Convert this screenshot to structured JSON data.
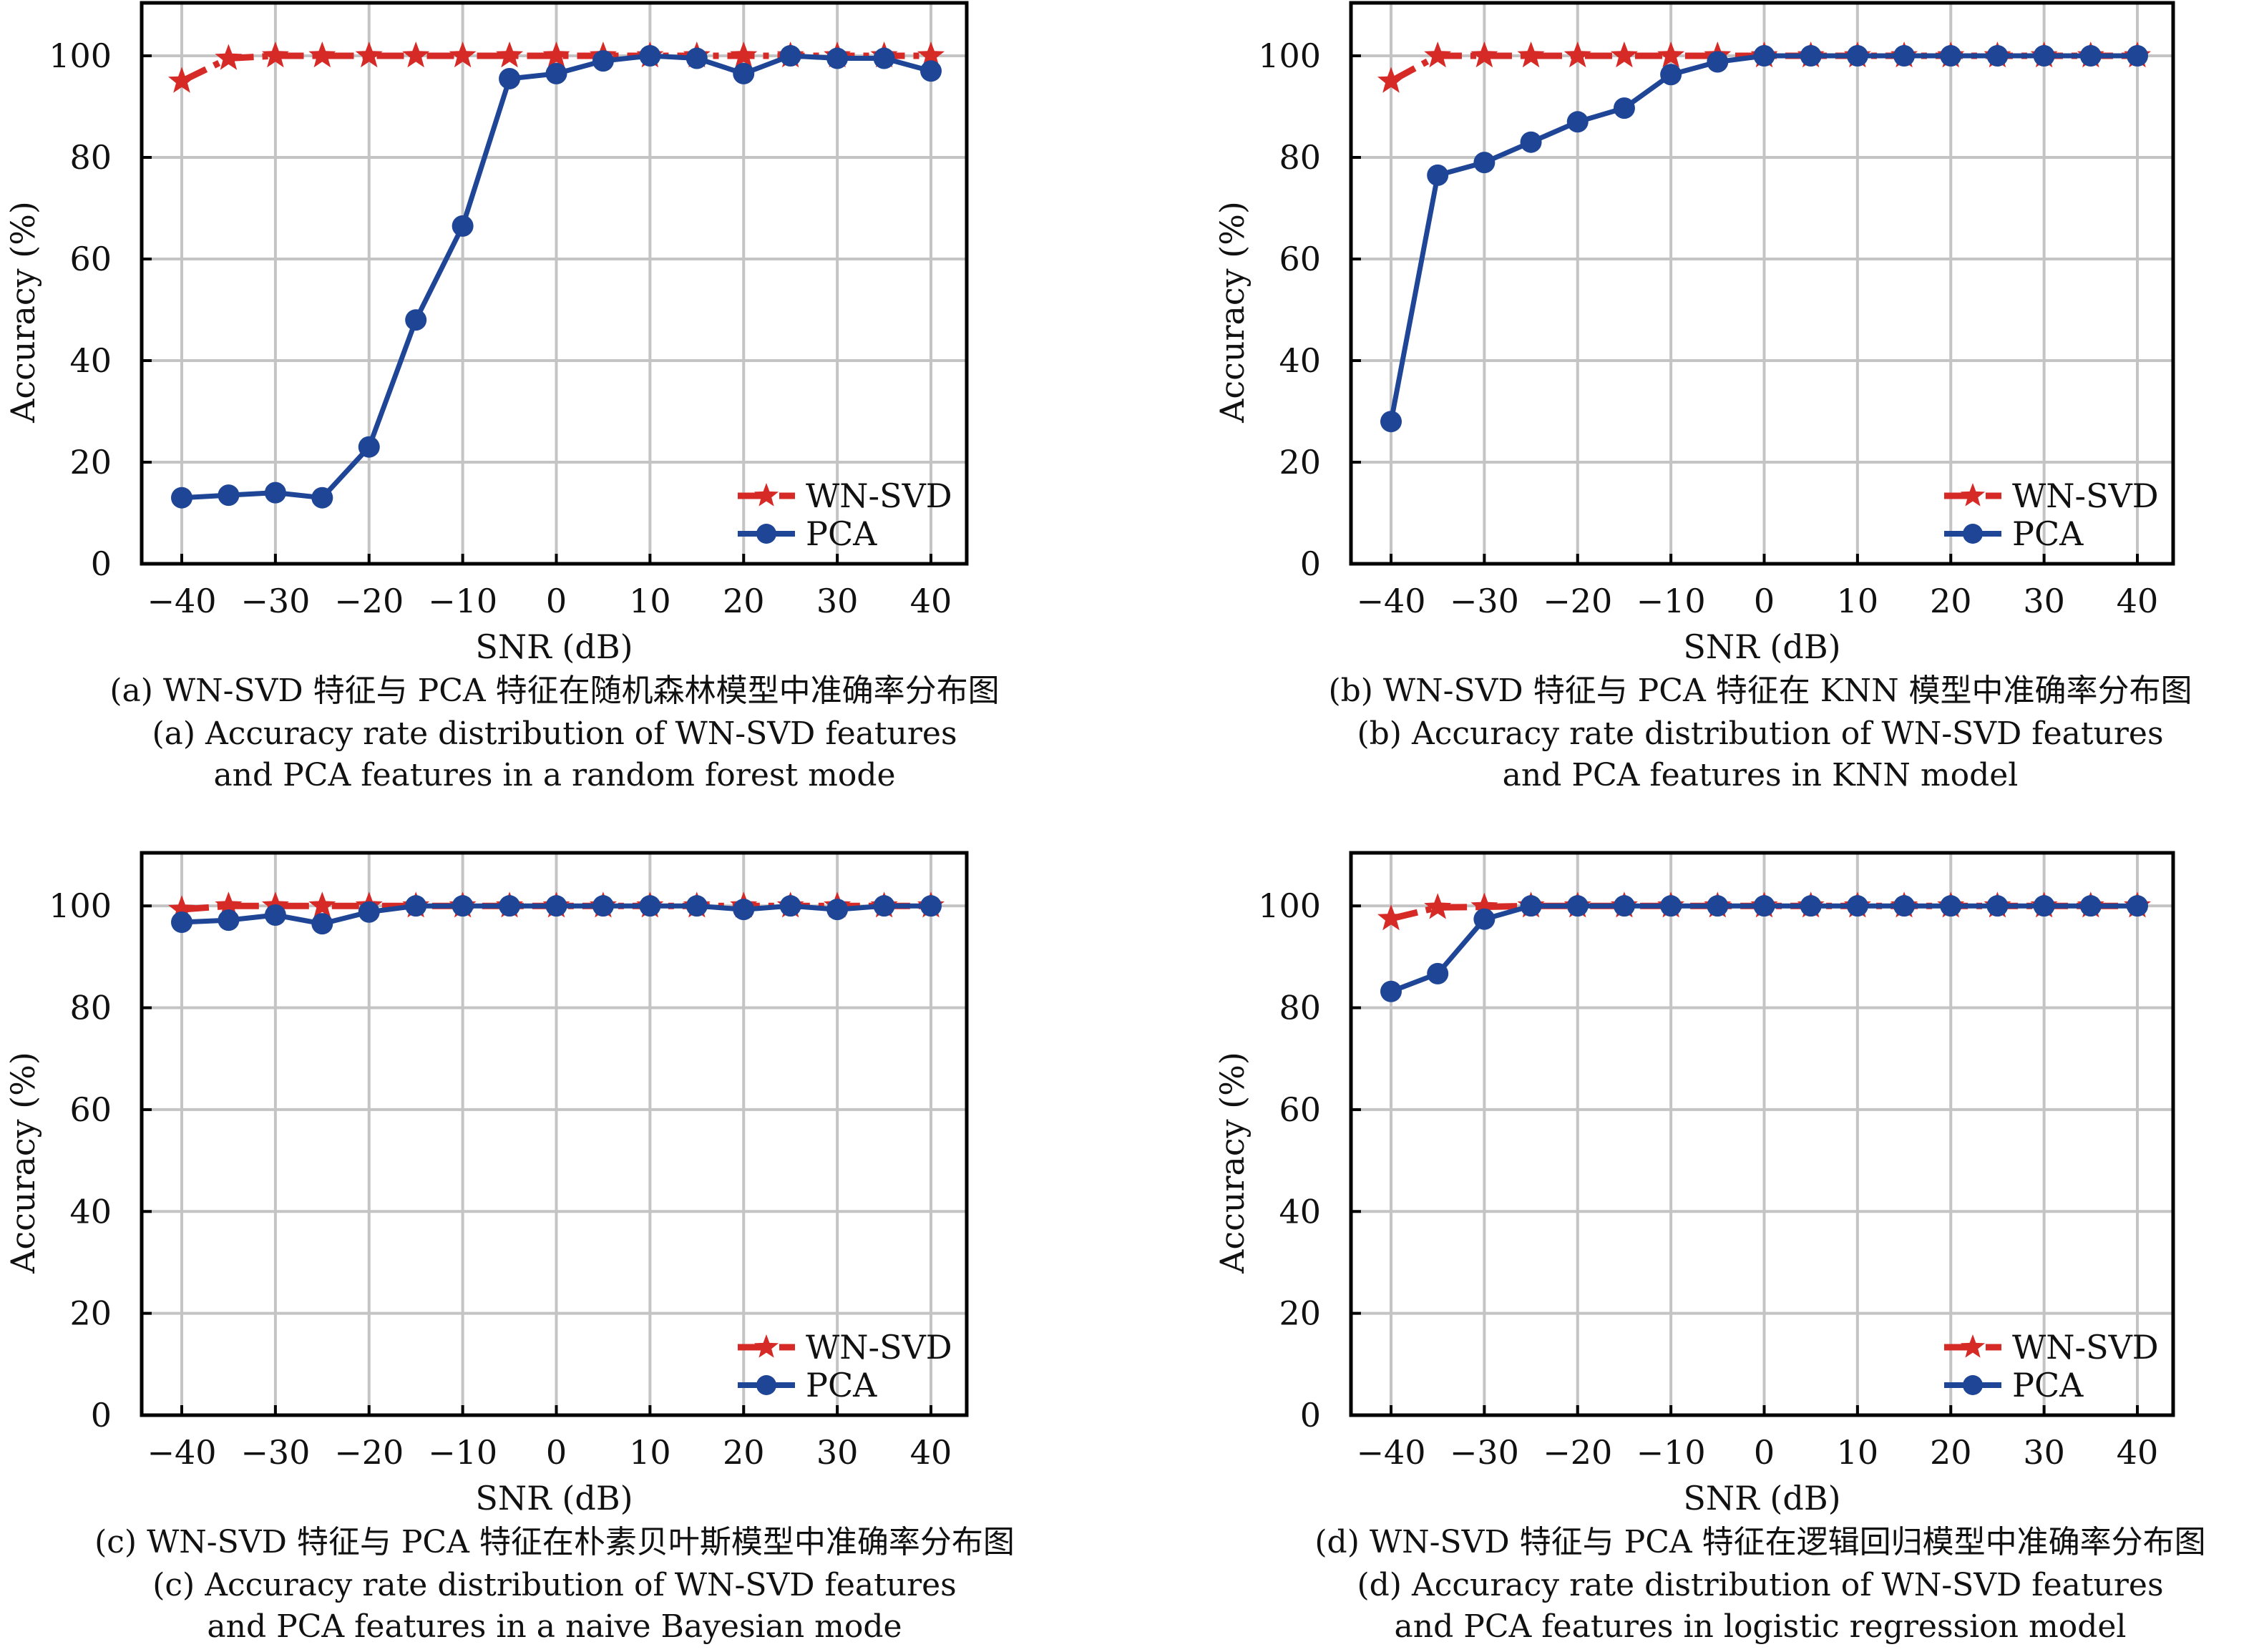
{
  "colors": {
    "wnsvd": "#d62a27",
    "pca": "#1f4596",
    "grid": "#c4c4c4"
  },
  "chart_data": [
    {
      "id": "a",
      "type": "line",
      "xlabel": "SNR (dB)",
      "ylabel": "Accuracy (%)",
      "xlim": [
        -44,
        44
      ],
      "ylim": [
        0,
        110
      ],
      "xticks": [
        "−40",
        "−30",
        "−20",
        "−10",
        "0",
        "10",
        "20",
        "30",
        "40"
      ],
      "xtick_values": [
        -40,
        -30,
        -20,
        -10,
        0,
        10,
        20,
        30,
        40
      ],
      "yticks": [
        "0",
        "20",
        "40",
        "60",
        "80",
        "100"
      ],
      "ytick_values": [
        0,
        20,
        40,
        60,
        80,
        100
      ],
      "grid": true,
      "legend_position": "bottom-right",
      "x": [
        -40,
        -35,
        -30,
        -25,
        -20,
        -15,
        -10,
        -5,
        0,
        5,
        10,
        15,
        20,
        25,
        30,
        35,
        40
      ],
      "series": [
        {
          "name": "WN-SVD",
          "marker": "star",
          "style": "dash-dot",
          "values": [
            95,
            99.5,
            100,
            100,
            100,
            100,
            100,
            100,
            100,
            100,
            100,
            100,
            100,
            100,
            100,
            100,
            100
          ]
        },
        {
          "name": "PCA",
          "marker": "circle",
          "style": "solid",
          "values": [
            13,
            13.5,
            14,
            13,
            23,
            48,
            66.5,
            95.5,
            96.5,
            99,
            100,
            99.5,
            96.5,
            100,
            99.5,
            99.5,
            97
          ]
        }
      ],
      "caption_cn": "(a) WN-SVD 特征与 PCA 特征在随机森林模型中准确率分布图",
      "caption_en_1": "(a) Accuracy rate distribution of WN-SVD features",
      "caption_en_2": "and PCA features in a random forest mode"
    },
    {
      "id": "b",
      "type": "line",
      "xlabel": "SNR (dB)",
      "ylabel": "Accuracy (%)",
      "xlim": [
        -44,
        44
      ],
      "ylim": [
        0,
        110
      ],
      "xticks": [
        "−40",
        "−30",
        "−20",
        "−10",
        "0",
        "10",
        "20",
        "30",
        "40"
      ],
      "xtick_values": [
        -40,
        -30,
        -20,
        -10,
        0,
        10,
        20,
        30,
        40
      ],
      "yticks": [
        "0",
        "20",
        "40",
        "60",
        "80",
        "100"
      ],
      "ytick_values": [
        0,
        20,
        40,
        60,
        80,
        100
      ],
      "grid": true,
      "legend_position": "bottom-right",
      "x": [
        -40,
        -35,
        -30,
        -25,
        -20,
        -15,
        -10,
        -5,
        0,
        5,
        10,
        15,
        20,
        25,
        30,
        35,
        40
      ],
      "series": [
        {
          "name": "WN-SVD",
          "marker": "star",
          "style": "dash-dot",
          "values": [
            95,
            100,
            100,
            100,
            100,
            100,
            100,
            100,
            100,
            100,
            100,
            100,
            100,
            100,
            100,
            100,
            100
          ]
        },
        {
          "name": "PCA",
          "marker": "circle",
          "style": "solid",
          "values": [
            28,
            76.5,
            79,
            83,
            87,
            89.7,
            96.3,
            98.8,
            100,
            100,
            100,
            100,
            100,
            100,
            100,
            100,
            100
          ]
        }
      ],
      "caption_cn": "(b) WN-SVD 特征与 PCA 特征在 KNN 模型中准确率分布图",
      "caption_en_1": "(b) Accuracy rate distribution of WN-SVD features",
      "caption_en_2": "and PCA features in KNN model"
    },
    {
      "id": "c",
      "type": "line",
      "xlabel": "SNR (dB)",
      "ylabel": "Accuracy (%)",
      "xlim": [
        -44,
        44
      ],
      "ylim": [
        0,
        110
      ],
      "xticks": [
        "−40",
        "−30",
        "−20",
        "−10",
        "0",
        "10",
        "20",
        "30",
        "40"
      ],
      "xtick_values": [
        -40,
        -30,
        -20,
        -10,
        0,
        10,
        20,
        30,
        40
      ],
      "yticks": [
        "0",
        "20",
        "40",
        "60",
        "80",
        "100"
      ],
      "ytick_values": [
        0,
        20,
        40,
        60,
        80,
        100
      ],
      "grid": true,
      "legend_position": "bottom-right",
      "x": [
        -40,
        -35,
        -30,
        -25,
        -20,
        -15,
        -10,
        -5,
        0,
        5,
        10,
        15,
        20,
        25,
        30,
        35,
        40
      ],
      "series": [
        {
          "name": "WN-SVD",
          "marker": "star",
          "style": "dash-dot",
          "values": [
            99.3,
            100,
            100,
            100,
            100,
            100,
            100,
            100,
            100,
            100,
            100,
            100,
            100,
            100,
            100,
            100,
            100
          ]
        },
        {
          "name": "PCA",
          "marker": "circle",
          "style": "solid",
          "values": [
            96.8,
            97.2,
            98.2,
            96.5,
            98.8,
            100,
            100,
            100,
            100,
            100,
            100,
            100,
            99.3,
            100,
            99.3,
            100,
            100
          ]
        }
      ],
      "caption_cn": "(c) WN-SVD 特征与 PCA 特征在朴素贝叶斯模型中准确率分布图",
      "caption_en_1": "(c) Accuracy rate distribution of WN-SVD features",
      "caption_en_2": "and PCA features in a naive Bayesian mode"
    },
    {
      "id": "d",
      "type": "line",
      "xlabel": "SNR (dB)",
      "ylabel": "Accuracy (%)",
      "xlim": [
        -44,
        44
      ],
      "ylim": [
        0,
        110
      ],
      "xticks": [
        "−40",
        "−30",
        "−20",
        "−10",
        "0",
        "10",
        "20",
        "30",
        "40"
      ],
      "xtick_values": [
        -40,
        -30,
        -20,
        -10,
        0,
        10,
        20,
        30,
        40
      ],
      "yticks": [
        "0",
        "20",
        "40",
        "60",
        "80",
        "100"
      ],
      "ytick_values": [
        0,
        20,
        40,
        60,
        80,
        100
      ],
      "grid": true,
      "legend_position": "bottom-right",
      "x": [
        -40,
        -35,
        -30,
        -25,
        -20,
        -15,
        -10,
        -5,
        0,
        5,
        10,
        15,
        20,
        25,
        30,
        35,
        40
      ],
      "series": [
        {
          "name": "WN-SVD",
          "marker": "star",
          "style": "dash-dot",
          "values": [
            97.5,
            99.7,
            99.8,
            100,
            100,
            100,
            100,
            100,
            100,
            100,
            100,
            100,
            100,
            100,
            100,
            100,
            100
          ]
        },
        {
          "name": "PCA",
          "marker": "circle",
          "style": "solid",
          "values": [
            83.2,
            86.7,
            97.4,
            100,
            100,
            100,
            100,
            100,
            100,
            100,
            100,
            100,
            100,
            100,
            100,
            100,
            100
          ]
        }
      ],
      "caption_cn": "(d) WN-SVD 特征与 PCA 特征在逻辑回归模型中准确率分布图",
      "caption_en_1": "(d) Accuracy rate distribution of WN-SVD features",
      "caption_en_2": "and PCA features in logistic regression model"
    }
  ]
}
